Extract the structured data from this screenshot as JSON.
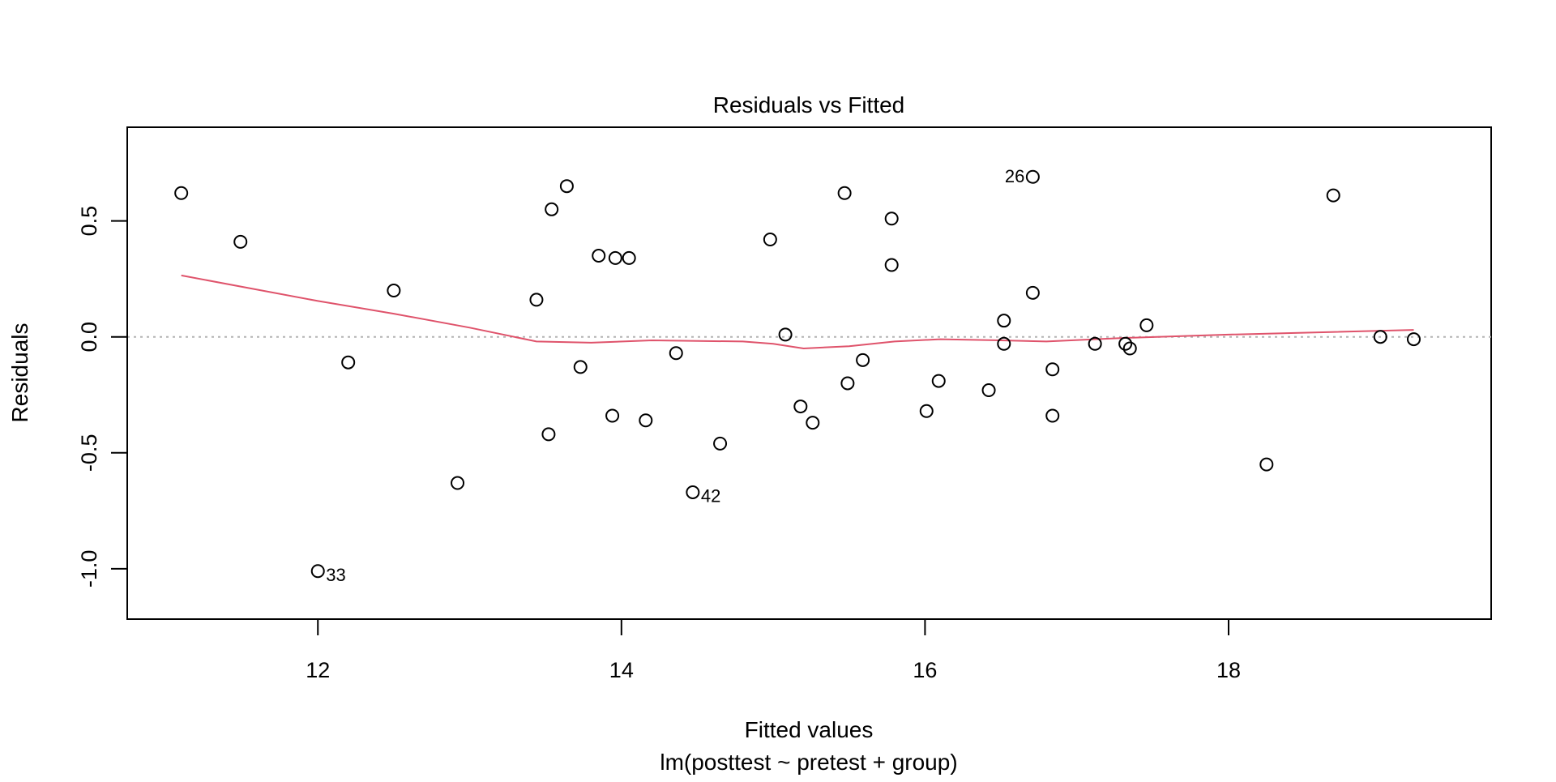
{
  "chart_data": {
    "type": "scatter",
    "title": "Residuals vs Fitted",
    "xlabel": "Fitted values",
    "subtitle": "lm(posttest ~ pretest + group)",
    "ylabel": "Residuals",
    "xlim": [
      10.744,
      19.73
    ],
    "ylim": [
      -1.217,
      0.904
    ],
    "xticks": [
      12,
      14,
      16,
      18
    ],
    "xtick_labels": [
      "12",
      "14",
      "16",
      "18"
    ],
    "yticks": [
      -1.0,
      -0.5,
      0.0,
      0.5
    ],
    "ytick_labels": [
      "-1.0",
      "-0.5",
      "0.0",
      "0.5"
    ],
    "grid": false,
    "reference_line": {
      "y": 0,
      "style": "dotted",
      "color": "#b3b3b3"
    },
    "points": [
      {
        "x": 11.1,
        "y": 0.62
      },
      {
        "x": 11.49,
        "y": 0.41
      },
      {
        "x": 12.5,
        "y": 0.2
      },
      {
        "x": 12.2,
        "y": -0.11
      },
      {
        "x": 12.0,
        "y": -1.01,
        "label": "33"
      },
      {
        "x": 12.92,
        "y": -0.63
      },
      {
        "x": 13.44,
        "y": 0.16
      },
      {
        "x": 13.52,
        "y": -0.42
      },
      {
        "x": 13.54,
        "y": 0.55
      },
      {
        "x": 13.64,
        "y": 0.65
      },
      {
        "x": 13.73,
        "y": -0.13
      },
      {
        "x": 13.85,
        "y": 0.35
      },
      {
        "x": 13.96,
        "y": 0.34
      },
      {
        "x": 14.05,
        "y": 0.34
      },
      {
        "x": 13.94,
        "y": -0.34
      },
      {
        "x": 14.16,
        "y": -0.36
      },
      {
        "x": 14.36,
        "y": -0.07
      },
      {
        "x": 14.47,
        "y": -0.67,
        "label": "42"
      },
      {
        "x": 14.65,
        "y": -0.46
      },
      {
        "x": 14.98,
        "y": 0.42
      },
      {
        "x": 15.08,
        "y": 0.01
      },
      {
        "x": 15.18,
        "y": -0.3
      },
      {
        "x": 15.26,
        "y": -0.37
      },
      {
        "x": 15.47,
        "y": 0.62
      },
      {
        "x": 15.49,
        "y": -0.2
      },
      {
        "x": 15.59,
        "y": -0.1
      },
      {
        "x": 15.78,
        "y": 0.51
      },
      {
        "x": 15.78,
        "y": 0.31
      },
      {
        "x": 16.01,
        "y": -0.32
      },
      {
        "x": 16.09,
        "y": -0.19
      },
      {
        "x": 16.42,
        "y": -0.23
      },
      {
        "x": 16.52,
        "y": 0.07
      },
      {
        "x": 16.52,
        "y": -0.03
      },
      {
        "x": 16.71,
        "y": 0.69,
        "label": "26"
      },
      {
        "x": 16.71,
        "y": 0.19
      },
      {
        "x": 16.84,
        "y": -0.14
      },
      {
        "x": 16.84,
        "y": -0.34
      },
      {
        "x": 17.12,
        "y": -0.03
      },
      {
        "x": 17.32,
        "y": -0.03
      },
      {
        "x": 17.35,
        "y": -0.05
      },
      {
        "x": 17.46,
        "y": 0.05
      },
      {
        "x": 18.25,
        "y": -0.55
      },
      {
        "x": 18.69,
        "y": 0.61
      },
      {
        "x": 19.0,
        "y": 0.0
      },
      {
        "x": 19.22,
        "y": -0.01
      }
    ],
    "smoother": {
      "color": "#DF536B",
      "x": [
        11.1,
        12.0,
        12.5,
        13.0,
        13.44,
        13.8,
        14.2,
        14.8,
        15.0,
        15.2,
        15.5,
        15.8,
        16.1,
        16.5,
        16.8,
        17.3,
        18.0,
        19.22
      ],
      "y": [
        0.265,
        0.155,
        0.1,
        0.04,
        -0.02,
        -0.025,
        -0.015,
        -0.02,
        -0.03,
        -0.05,
        -0.04,
        -0.02,
        -0.01,
        -0.015,
        -0.02,
        -0.005,
        0.01,
        0.03
      ]
    }
  }
}
